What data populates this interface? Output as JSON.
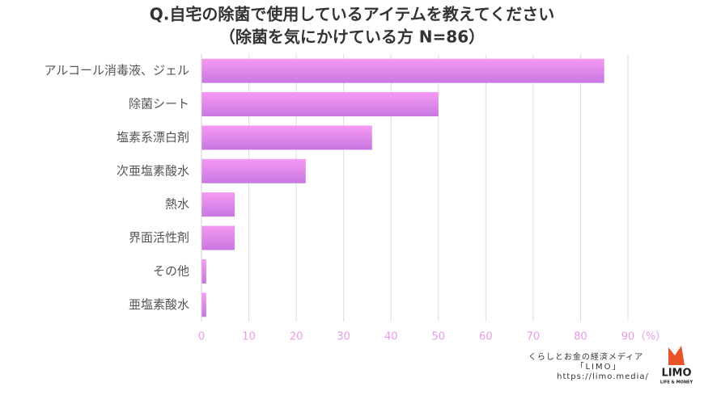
{
  "chart_data": {
    "type": "bar",
    "orientation": "horizontal",
    "title": "Q.自宅の除菌で使用しているアイテムを教えてください",
    "subtitle": "（除菌を気にかけている方 N=86）",
    "categories": [
      "アルコール消毒液、ジェル",
      "除菌シート",
      "塩素系漂白剤",
      "次亜塩素酸水",
      "熱水",
      "界面活性剤",
      "その他",
      "亜塩素酸水"
    ],
    "values": [
      85,
      50,
      36,
      22,
      7,
      7,
      1,
      1
    ],
    "color": "#d77ee6",
    "xlim": [
      0,
      90
    ],
    "xticks": [
      0,
      10,
      20,
      30,
      40,
      50,
      60,
      70,
      80,
      90
    ],
    "x_unit": "（%）",
    "grid": true
  },
  "footer": {
    "tagline": "くらしとお金の経済メディア",
    "brand": "「LIMO」",
    "url": "https://limo.media/",
    "logo": "LIMO",
    "logo_sub": "LIFE & MONEY"
  }
}
